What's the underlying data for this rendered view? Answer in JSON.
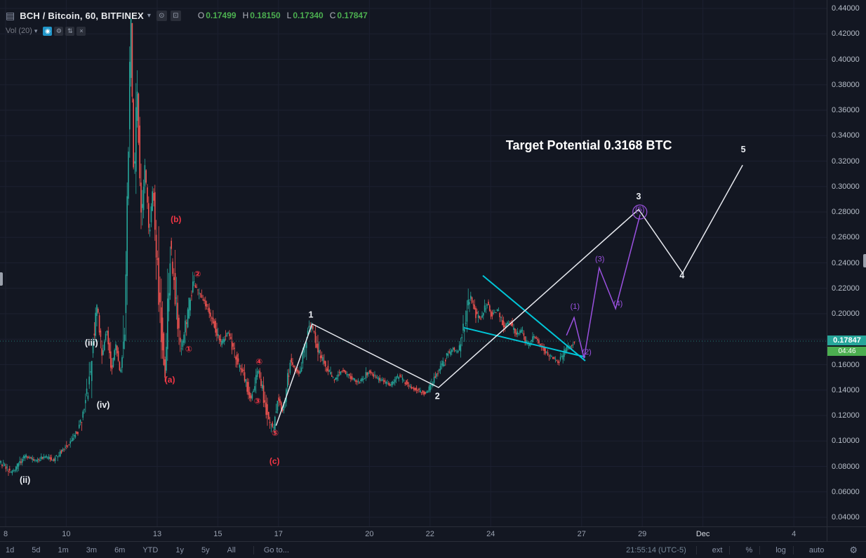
{
  "icons": {
    "menu": "▤",
    "caret": "▾",
    "compare": "⊙",
    "snapshot": "⊡",
    "eye": "◉",
    "gear": "⚙",
    "arrows": "⇅",
    "close": "×"
  },
  "header": {
    "symbol_title": "BCH / Bitcoin, 60, BITFINEX",
    "ohlc": [
      {
        "label": "O",
        "value": "0.17499"
      },
      {
        "label": "H",
        "value": "0.18150"
      },
      {
        "label": "L",
        "value": "0.17340"
      },
      {
        "label": "C",
        "value": "0.17847"
      }
    ],
    "ohlc_value_color": "#4caf50"
  },
  "indicator_row": {
    "label": "Vol (20)",
    "active_icon_color": "#2196c9"
  },
  "price_scale": {
    "current_price": "0.17847",
    "countdown": "04:46",
    "badge_color": "#26a69a",
    "countdown_color": "#4caf50"
  },
  "toolbar": {
    "ranges": [
      "1d",
      "5d",
      "1m",
      "3m",
      "6m",
      "YTD",
      "1y",
      "5y",
      "All"
    ],
    "goto": "Go to...",
    "clock": "21:55:14 (UTC-5)",
    "modes": [
      "ext",
      "%",
      "log",
      "auto"
    ]
  },
  "chart_data": {
    "type": "candlestick",
    "title": "BCH / Bitcoin, 60, BITFINEX",
    "interval_minutes": 60,
    "last_price": 0.17847,
    "day_start": 7.78,
    "day_end": 26.78,
    "y_axis": {
      "min": 0.04,
      "max": 0.44,
      "step": 0.02,
      "ticks": [
        "0.44000",
        "0.42000",
        "0.40000",
        "0.38000",
        "0.36000",
        "0.34000",
        "0.32000",
        "0.30000",
        "0.28000",
        "0.26000",
        "0.24000",
        "0.22000",
        "0.20000",
        "0.18000",
        "0.16000",
        "0.14000",
        "0.12000",
        "0.10000",
        "0.08000",
        "0.06000",
        "0.04000"
      ]
    },
    "x_axis": {
      "ticks": [
        {
          "d": 8,
          "label": "8"
        },
        {
          "d": 10,
          "label": "10"
        },
        {
          "d": 13,
          "label": "13"
        },
        {
          "d": 15,
          "label": "15"
        },
        {
          "d": 17,
          "label": "17"
        },
        {
          "d": 20,
          "label": "20"
        },
        {
          "d": 22,
          "label": "22"
        },
        {
          "d": 24,
          "label": "24"
        },
        {
          "d": 27,
          "label": "27"
        },
        {
          "d": 29,
          "label": "29"
        },
        {
          "d": 31,
          "label": "Dec",
          "major": true
        },
        {
          "d": 34,
          "label": "4"
        }
      ]
    },
    "colors": {
      "up": "#26a69a",
      "down": "#ef5350",
      "grid": "#1c2030",
      "white_line": "#e8eaf0",
      "cyan": "#00c6d8",
      "purple": "#9b51e0",
      "red_label": "#f23645",
      "white_label": "#eceff4"
    },
    "price_path": [
      [
        7.72,
        0.086
      ],
      [
        8.0,
        0.08
      ],
      [
        8.2,
        0.075
      ],
      [
        8.45,
        0.083
      ],
      [
        8.7,
        0.088
      ],
      [
        9.0,
        0.084
      ],
      [
        9.3,
        0.088
      ],
      [
        9.6,
        0.085
      ],
      [
        9.9,
        0.093
      ],
      [
        10.15,
        0.099
      ],
      [
        10.4,
        0.108
      ],
      [
        10.6,
        0.124
      ],
      [
        10.8,
        0.15
      ],
      [
        10.95,
        0.188
      ],
      [
        11.05,
        0.208
      ],
      [
        11.2,
        0.164
      ],
      [
        11.35,
        0.19
      ],
      [
        11.5,
        0.154
      ],
      [
        11.65,
        0.176
      ],
      [
        11.8,
        0.152
      ],
      [
        11.95,
        0.188
      ],
      [
        12.15,
        0.432
      ],
      [
        12.25,
        0.3
      ],
      [
        12.35,
        0.378
      ],
      [
        12.5,
        0.272
      ],
      [
        12.62,
        0.316
      ],
      [
        12.75,
        0.262
      ],
      [
        12.88,
        0.3
      ],
      [
        13.0,
        0.248
      ],
      [
        13.1,
        0.208
      ],
      [
        13.28,
        0.15
      ],
      [
        13.45,
        0.252
      ],
      [
        13.62,
        0.212
      ],
      [
        13.8,
        0.172
      ],
      [
        14.0,
        0.196
      ],
      [
        14.2,
        0.226
      ],
      [
        14.4,
        0.215
      ],
      [
        14.65,
        0.207
      ],
      [
        14.9,
        0.192
      ],
      [
        15.1,
        0.176
      ],
      [
        15.35,
        0.186
      ],
      [
        15.6,
        0.166
      ],
      [
        15.9,
        0.15
      ],
      [
        16.1,
        0.133
      ],
      [
        16.35,
        0.157
      ],
      [
        16.6,
        0.126
      ],
      [
        16.85,
        0.108
      ],
      [
        17.0,
        0.136
      ],
      [
        17.15,
        0.122
      ],
      [
        17.4,
        0.162
      ],
      [
        17.7,
        0.152
      ],
      [
        18.0,
        0.186
      ],
      [
        18.12,
        0.192
      ],
      [
        18.35,
        0.17
      ],
      [
        18.6,
        0.158
      ],
      [
        18.85,
        0.148
      ],
      [
        19.1,
        0.156
      ],
      [
        19.4,
        0.15
      ],
      [
        19.7,
        0.146
      ],
      [
        20.0,
        0.155
      ],
      [
        20.3,
        0.149
      ],
      [
        20.7,
        0.144
      ],
      [
        21.0,
        0.151
      ],
      [
        21.3,
        0.144
      ],
      [
        21.6,
        0.14
      ],
      [
        21.9,
        0.137
      ],
      [
        22.1,
        0.147
      ],
      [
        22.35,
        0.156
      ],
      [
        22.55,
        0.166
      ],
      [
        22.75,
        0.173
      ],
      [
        22.95,
        0.169
      ],
      [
        23.15,
        0.192
      ],
      [
        23.35,
        0.214
      ],
      [
        23.5,
        0.2
      ],
      [
        23.7,
        0.196
      ],
      [
        23.9,
        0.209
      ],
      [
        24.05,
        0.198
      ],
      [
        24.25,
        0.204
      ],
      [
        24.45,
        0.189
      ],
      [
        24.65,
        0.194
      ],
      [
        24.85,
        0.184
      ],
      [
        25.05,
        0.187
      ],
      [
        25.25,
        0.174
      ],
      [
        25.45,
        0.183
      ],
      [
        25.65,
        0.176
      ],
      [
        25.85,
        0.17
      ],
      [
        26.05,
        0.165
      ],
      [
        26.25,
        0.161
      ],
      [
        26.45,
        0.171
      ],
      [
        26.6,
        0.174
      ],
      [
        26.78,
        0.178
      ]
    ],
    "overlays": {
      "white_zigzag": {
        "points": [
          [
            16.92,
            0.112
          ],
          [
            18.11,
            0.192
          ],
          [
            22.28,
            0.142
          ],
          [
            28.88,
            0.282
          ],
          [
            30.33,
            0.232
          ],
          [
            32.31,
            0.3168
          ]
        ]
      },
      "purple_zigzag": {
        "points": [
          [
            26.5,
            0.183
          ],
          [
            26.75,
            0.197
          ],
          [
            27.08,
            0.165
          ],
          [
            27.58,
            0.236
          ],
          [
            28.12,
            0.204
          ],
          [
            28.93,
            0.278
          ]
        ]
      },
      "purple_circle": {
        "d": 28.92,
        "p": 0.28,
        "r": 10
      },
      "cyan_lines": [
        {
          "points": [
            [
              23.74,
              0.23
            ],
            [
              27.12,
              0.163
            ]
          ]
        },
        {
          "points": [
            [
              23.12,
              0.189
            ],
            [
              27.12,
              0.166
            ]
          ]
        }
      ]
    },
    "labels": {
      "red": {
        "color": "#f23645",
        "size": 12,
        "weight": "bold",
        "items": [
          {
            "t": "(b)",
            "d": 13.62,
            "p": 0.272
          },
          {
            "t": "②",
            "d": 14.33,
            "p": 0.229
          },
          {
            "t": "①",
            "d": 14.04,
            "p": 0.17
          },
          {
            "t": "(a)",
            "d": 13.42,
            "p": 0.146
          },
          {
            "t": "④",
            "d": 16.36,
            "p": 0.16
          },
          {
            "t": "③",
            "d": 16.31,
            "p": 0.129
          },
          {
            "t": "⑤",
            "d": 16.89,
            "p": 0.104
          },
          {
            "t": "(c)",
            "d": 16.87,
            "p": 0.082
          }
        ]
      },
      "white": {
        "color": "#eceff4",
        "size": 12.5,
        "weight": "bold",
        "items": [
          {
            "t": "(iii)",
            "d": 10.83,
            "p": 0.175
          },
          {
            "t": "(iv)",
            "d": 11.22,
            "p": 0.126
          },
          {
            "t": "(ii)",
            "d": 8.64,
            "p": 0.067
          },
          {
            "t": "1",
            "d": 18.07,
            "p": 0.197
          },
          {
            "t": "2",
            "d": 22.24,
            "p": 0.133
          },
          {
            "t": "3",
            "d": 28.88,
            "p": 0.29
          },
          {
            "t": "4",
            "d": 30.31,
            "p": 0.228
          },
          {
            "t": "5",
            "d": 32.33,
            "p": 0.327
          }
        ]
      },
      "purple": {
        "color": "#9b51e0",
        "size": 11,
        "weight": "normal",
        "items": [
          {
            "t": "(1)",
            "d": 26.78,
            "p": 0.204
          },
          {
            "t": "(2)",
            "d": 27.17,
            "p": 0.168
          },
          {
            "t": "(3)",
            "d": 27.6,
            "p": 0.241
          },
          {
            "t": "(4)",
            "d": 28.2,
            "p": 0.206
          },
          {
            "t": "(5)",
            "d": 28.92,
            "p": 0.28
          }
        ]
      },
      "target": {
        "t": "Target Potential 0.3168 BTC",
        "d": 24.5,
        "p": 0.329,
        "color": "#ffffff",
        "size": 18
      }
    }
  }
}
